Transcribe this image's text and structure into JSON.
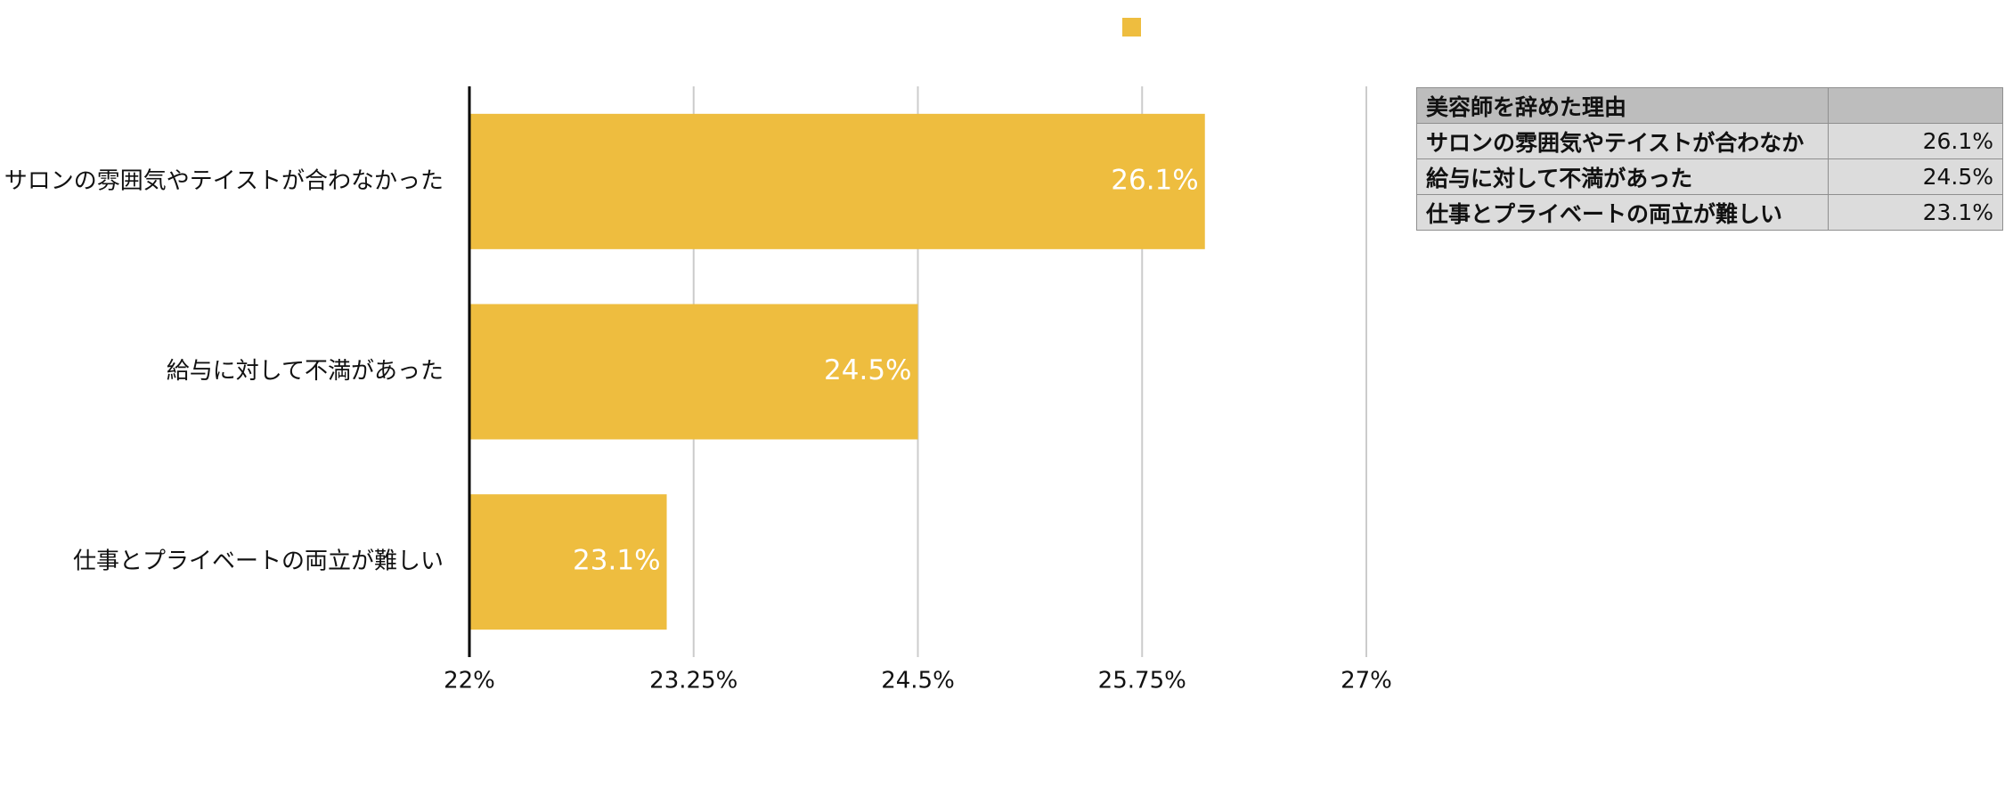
{
  "chart_data": {
    "type": "bar",
    "orientation": "horizontal",
    "categories": [
      "サロンの雰囲気やテイストが合わなかった",
      "給与に対して不満があった",
      "仕事とプライベートの両立が難しい"
    ],
    "values": [
      26.1,
      24.5,
      23.1
    ],
    "data_labels": [
      "26.1%",
      "24.5%",
      "23.1%"
    ],
    "xlim": [
      22,
      27
    ],
    "x_ticks": [
      22,
      23.25,
      24.5,
      25.75,
      27
    ],
    "x_tick_labels": [
      "22%",
      "23.25%",
      "24.5%",
      "25.75%",
      "27%"
    ],
    "series_color": "#EEBD3F",
    "legend_position": "top-center",
    "grid": true
  },
  "table": {
    "header": [
      "美容師を辞めた理由",
      ""
    ],
    "rows": [
      [
        "サロンの雰囲気やテイストが合わなか",
        "26.1%"
      ],
      [
        "給与に対して不満があった",
        "24.5%"
      ],
      [
        "仕事とプライベートの両立が難しい",
        "23.1%"
      ]
    ]
  }
}
